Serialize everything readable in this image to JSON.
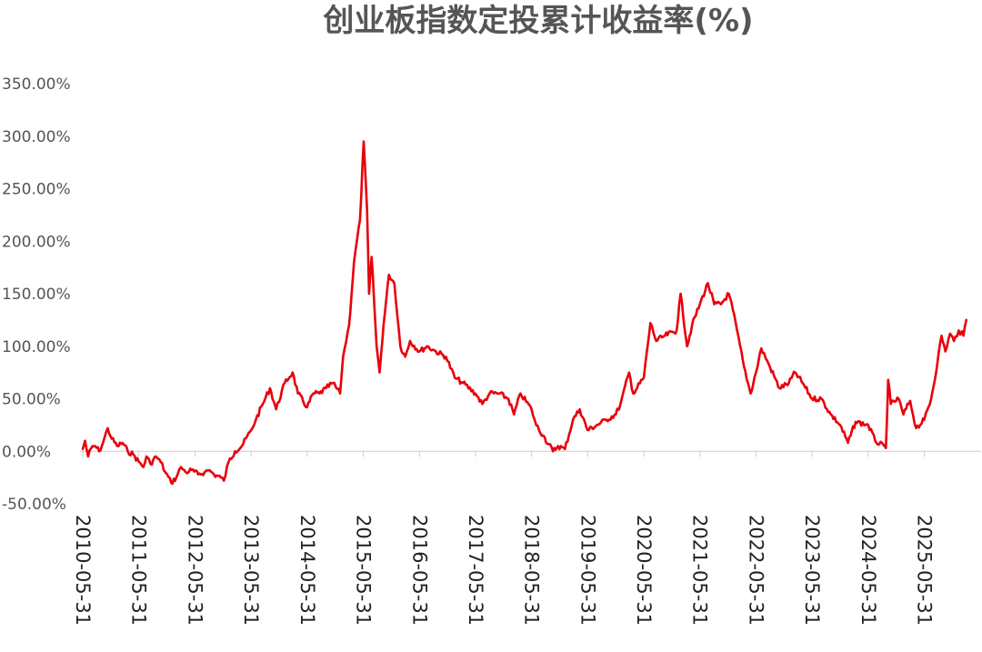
{
  "chart_data": {
    "type": "line",
    "title": "创业板指数定投累计收益率(%)",
    "xlabel": "",
    "ylabel": "",
    "ylim": [
      -50,
      350
    ],
    "y_ticks": [
      "350.00%",
      "300.00%",
      "250.00%",
      "200.00%",
      "150.00%",
      "100.00%",
      "50.00%",
      "0.00%",
      "-50.00%"
    ],
    "y_tick_values": [
      350,
      300,
      250,
      200,
      150,
      100,
      50,
      0,
      -50
    ],
    "x_ticks": [
      "2010-05-31",
      "2011-05-31",
      "2012-05-31",
      "2013-05-31",
      "2014-05-31",
      "2015-05-31",
      "2016-05-31",
      "2017-05-31",
      "2018-05-31",
      "2019-05-31",
      "2020-05-31",
      "2021-05-31",
      "2022-05-31",
      "2023-05-31",
      "2024-05-31",
      "2025-05-31"
    ],
    "x_range": [
      "2010-05-31",
      "2026-02-28"
    ],
    "grid": false,
    "legend": "none",
    "series": [
      {
        "color": "#e8000b",
        "points": [
          [
            "2010-05-31",
            2
          ],
          [
            "2010-06-15",
            10
          ],
          [
            "2010-07-05",
            -5
          ],
          [
            "2010-07-25",
            3
          ],
          [
            "2010-08-20",
            5
          ],
          [
            "2010-09-15",
            0
          ],
          [
            "2010-10-10",
            8
          ],
          [
            "2010-11-10",
            22
          ],
          [
            "2010-12-05",
            12
          ],
          [
            "2011-01-10",
            5
          ],
          [
            "2011-02-15",
            8
          ],
          [
            "2011-03-20",
            0
          ],
          [
            "2011-04-25",
            -3
          ],
          [
            "2011-05-31",
            -10
          ],
          [
            "2011-06-30",
            -15
          ],
          [
            "2011-07-20",
            -5
          ],
          [
            "2011-08-15",
            -12
          ],
          [
            "2011-09-20",
            -5
          ],
          [
            "2011-10-20",
            -10
          ],
          [
            "2011-11-20",
            -20
          ],
          [
            "2011-12-28",
            -30
          ],
          [
            "2012-01-30",
            -25
          ],
          [
            "2012-03-01",
            -15
          ],
          [
            "2012-04-01",
            -20
          ],
          [
            "2012-05-10",
            -18
          ],
          [
            "2012-06-20",
            -22
          ],
          [
            "2012-08-01",
            -20
          ],
          [
            "2012-09-01",
            -18
          ],
          [
            "2012-10-01",
            -22
          ],
          [
            "2012-11-15",
            -25
          ],
          [
            "2012-12-05",
            -28
          ],
          [
            "2013-01-05",
            -10
          ],
          [
            "2013-02-15",
            0
          ],
          [
            "2013-04-01",
            5
          ],
          [
            "2013-05-31",
            20
          ],
          [
            "2013-07-01",
            30
          ],
          [
            "2013-08-15",
            45
          ],
          [
            "2013-10-01",
            60
          ],
          [
            "2013-11-10",
            40
          ],
          [
            "2014-01-05",
            65
          ],
          [
            "2014-02-25",
            75
          ],
          [
            "2014-04-01",
            55
          ],
          [
            "2014-05-31",
            42
          ],
          [
            "2014-07-10",
            55
          ],
          [
            "2014-08-20",
            55
          ],
          [
            "2014-10-01",
            60
          ],
          [
            "2014-11-15",
            65
          ],
          [
            "2014-12-31",
            55
          ],
          [
            "2015-01-20",
            90
          ],
          [
            "2015-02-28",
            120
          ],
          [
            "2015-04-01",
            180
          ],
          [
            "2015-05-10",
            220
          ],
          [
            "2015-06-03",
            295
          ],
          [
            "2015-06-25",
            230
          ],
          [
            "2015-07-08",
            150
          ],
          [
            "2015-07-25",
            185
          ],
          [
            "2015-08-26",
            100
          ],
          [
            "2015-09-15",
            75
          ],
          [
            "2015-10-10",
            120
          ],
          [
            "2015-11-15",
            168
          ],
          [
            "2015-12-20",
            160
          ],
          [
            "2016-01-28",
            100
          ],
          [
            "2016-02-29",
            90
          ],
          [
            "2016-03-31",
            105
          ],
          [
            "2016-05-31",
            95
          ],
          [
            "2016-07-20",
            100
          ],
          [
            "2016-09-15",
            95
          ],
          [
            "2016-11-20",
            90
          ],
          [
            "2017-01-16",
            70
          ],
          [
            "2017-03-10",
            65
          ],
          [
            "2017-05-31",
            55
          ],
          [
            "2017-07-15",
            45
          ],
          [
            "2017-08-31",
            55
          ],
          [
            "2017-10-31",
            55
          ],
          [
            "2017-12-31",
            50
          ],
          [
            "2018-02-06",
            35
          ],
          [
            "2018-03-20",
            55
          ],
          [
            "2018-05-31",
            40
          ],
          [
            "2018-06-30",
            25
          ],
          [
            "2018-08-15",
            15
          ],
          [
            "2018-10-18",
            0
          ],
          [
            "2018-11-20",
            5
          ],
          [
            "2019-01-03",
            2
          ],
          [
            "2019-02-25",
            30
          ],
          [
            "2019-04-10",
            40
          ],
          [
            "2019-05-31",
            20
          ],
          [
            "2019-07-31",
            25
          ],
          [
            "2019-09-30",
            30
          ],
          [
            "2019-11-30",
            35
          ],
          [
            "2019-12-31",
            45
          ],
          [
            "2020-02-25",
            75
          ],
          [
            "2020-03-23",
            55
          ],
          [
            "2020-05-31",
            70
          ],
          [
            "2020-07-13",
            122
          ],
          [
            "2020-08-20",
            105
          ],
          [
            "2020-10-15",
            110
          ],
          [
            "2020-12-31",
            115
          ],
          [
            "2021-01-25",
            150
          ],
          [
            "2021-03-09",
            100
          ],
          [
            "2021-04-10",
            120
          ],
          [
            "2021-05-31",
            140
          ],
          [
            "2021-07-22",
            160
          ],
          [
            "2021-09-01",
            140
          ],
          [
            "2021-10-15",
            140
          ],
          [
            "2021-12-05",
            150
          ],
          [
            "2021-12-31",
            135
          ],
          [
            "2022-03-15",
            80
          ],
          [
            "2022-04-26",
            55
          ],
          [
            "2022-05-31",
            75
          ],
          [
            "2022-07-05",
            98
          ],
          [
            "2022-08-31",
            80
          ],
          [
            "2022-10-31",
            60
          ],
          [
            "2022-12-31",
            65
          ],
          [
            "2023-02-10",
            75
          ],
          [
            "2023-03-31",
            65
          ],
          [
            "2023-05-31",
            50
          ],
          [
            "2023-07-31",
            50
          ],
          [
            "2023-09-30",
            35
          ],
          [
            "2023-11-30",
            25
          ],
          [
            "2024-01-20",
            8
          ],
          [
            "2024-03-10",
            28
          ],
          [
            "2024-05-31",
            25
          ],
          [
            "2024-07-15",
            10
          ],
          [
            "2024-09-23",
            3
          ],
          [
            "2024-10-08",
            68
          ],
          [
            "2024-10-25",
            45
          ],
          [
            "2024-12-15",
            50
          ],
          [
            "2025-01-15",
            35
          ],
          [
            "2025-02-28",
            48
          ],
          [
            "2025-04-08",
            22
          ],
          [
            "2025-05-31",
            30
          ],
          [
            "2025-07-15",
            50
          ],
          [
            "2025-08-25",
            85
          ],
          [
            "2025-09-20",
            110
          ],
          [
            "2025-10-15",
            95
          ],
          [
            "2025-11-15",
            112
          ],
          [
            "2025-12-10",
            105
          ],
          [
            "2026-01-10",
            115
          ],
          [
            "2026-02-10",
            110
          ],
          [
            "2026-02-28",
            125
          ]
        ]
      }
    ]
  }
}
